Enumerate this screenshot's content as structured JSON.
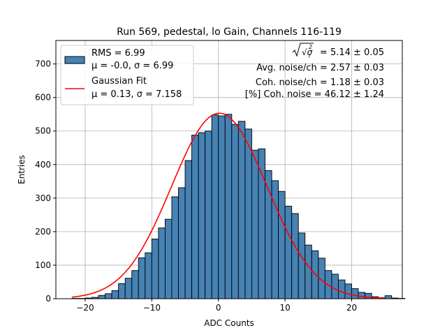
{
  "chart_data": {
    "type": "bar",
    "title": "Run 569, pedestal, lo Gain, Channels 116-119",
    "xlabel": "ADC Counts",
    "ylabel": "Entries",
    "xlim": [
      -24.4,
      27.6
    ],
    "ylim": [
      0,
      770
    ],
    "xticks": [
      -20,
      -10,
      0,
      10,
      20
    ],
    "xtick_labels": [
      "−20",
      "−10",
      "0",
      "10",
      "20"
    ],
    "yticks": [
      0,
      100,
      200,
      300,
      400,
      500,
      600,
      700
    ],
    "ytick_labels": [
      "0",
      "100",
      "200",
      "300",
      "400",
      "500",
      "600",
      "700"
    ],
    "grid": true,
    "legend_position": "upper-left",
    "histogram": {
      "name_lines": [
        "RMS = 6.99",
        "μ = -0.0, σ = 6.99"
      ],
      "color": "#4682b4",
      "edge_color": "#000000",
      "bin_width": 1,
      "bin_start": -22,
      "counts": [
        1,
        1,
        2,
        4,
        10,
        15,
        24,
        45,
        61,
        84,
        122,
        137,
        178,
        211,
        237,
        304,
        331,
        412,
        488,
        495,
        500,
        548,
        545,
        550,
        520,
        529,
        506,
        443,
        447,
        382,
        352,
        320,
        276,
        254,
        196,
        160,
        143,
        121,
        84,
        73,
        56,
        44,
        30,
        19,
        16,
        6,
        3,
        9,
        2,
        1
      ]
    },
    "fit": {
      "name": "Gaussian Fit",
      "params_line": "μ = 0.13, σ = 7.158",
      "mu": 0.13,
      "sigma": 7.158,
      "amplitude": 553,
      "x_range": [
        -22,
        25
      ],
      "color": "#ff0000"
    },
    "annotations": [
      {
        "id": "sigma-total",
        "prefix": "√σ",
        "suffix": " = 5.14 ± 0.05"
      },
      {
        "id": "avg-noise",
        "text": "Avg. noise/ch = 2.57 ± 0.03"
      },
      {
        "id": "coh-noise",
        "text": "Coh. noise/ch = 1.18 ± 0.03"
      },
      {
        "id": "coh-noise-pct",
        "text": "[%] Coh. noise = 46.12 ± 1.24"
      }
    ]
  }
}
